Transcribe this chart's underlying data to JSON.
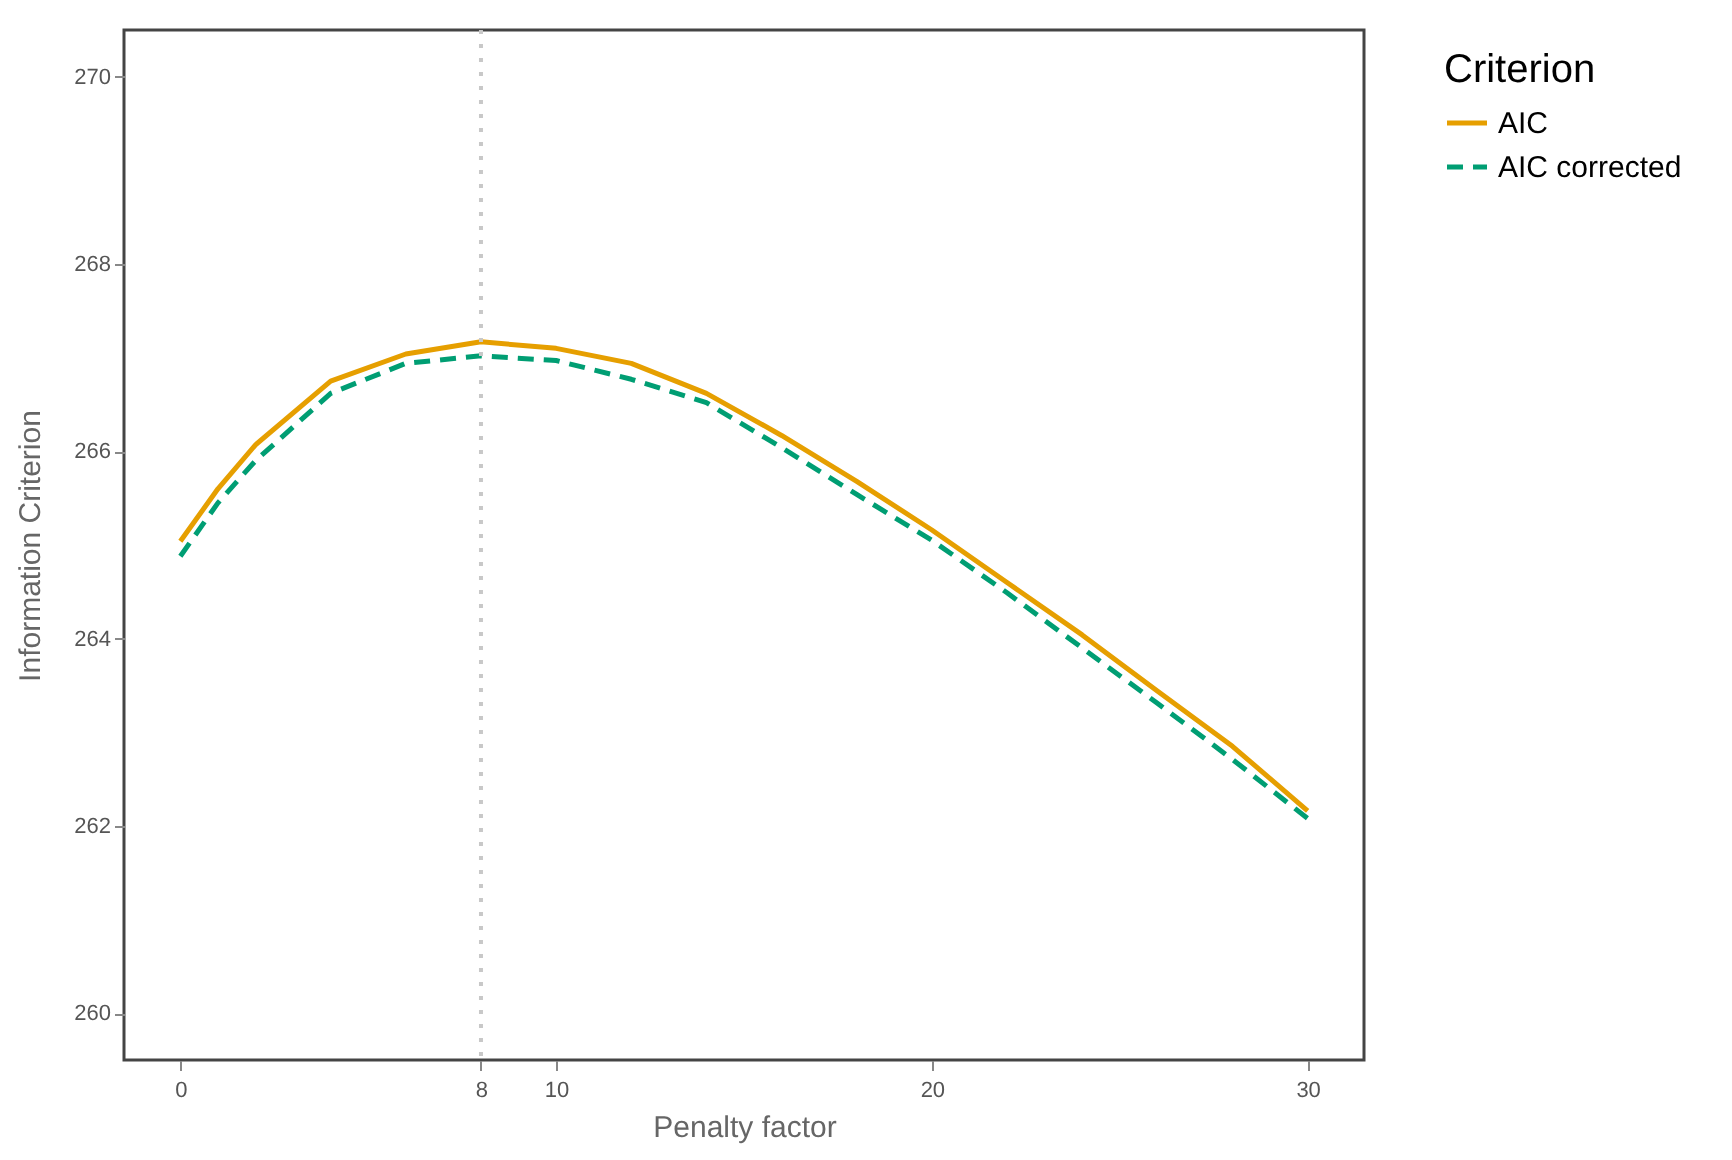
{
  "chart_data": {
    "type": "line",
    "xlabel": "Penalty factor",
    "ylabel": "Information Criterion",
    "legend_title": "Criterion",
    "x": [
      0,
      1,
      2,
      4,
      6,
      8,
      10,
      12,
      14,
      16,
      18,
      20,
      22,
      24,
      26,
      28,
      30
    ],
    "series": [
      {
        "name": "AIC",
        "color": "#e69f00",
        "line_style": "solid",
        "values": [
          265.04,
          265.6,
          266.07,
          266.75,
          267.04,
          267.17,
          267.1,
          266.94,
          266.62,
          266.17,
          265.68,
          265.16,
          264.6,
          264.04,
          263.44,
          262.85,
          262.16
        ]
      },
      {
        "name": "AIC corrected",
        "color": "#009e73",
        "line_style": "dashed",
        "values": [
          264.88,
          265.45,
          265.9,
          266.62,
          266.94,
          267.02,
          266.97,
          266.77,
          266.52,
          266.04,
          265.54,
          265.05,
          264.49,
          263.9,
          263.31,
          262.71,
          262.08
        ]
      }
    ],
    "xlim": [
      -1.5,
      31.5
    ],
    "xticks": [
      0,
      8,
      10,
      20,
      30
    ],
    "ylim": [
      259.5,
      270.5
    ],
    "yticks": [
      260,
      262,
      264,
      266,
      268,
      270
    ],
    "ref_lines": [
      {
        "axis": "x",
        "value": 8,
        "color": "#c8c8c8",
        "line_style": "dotted"
      }
    ],
    "grid": false,
    "legend": "right"
  }
}
